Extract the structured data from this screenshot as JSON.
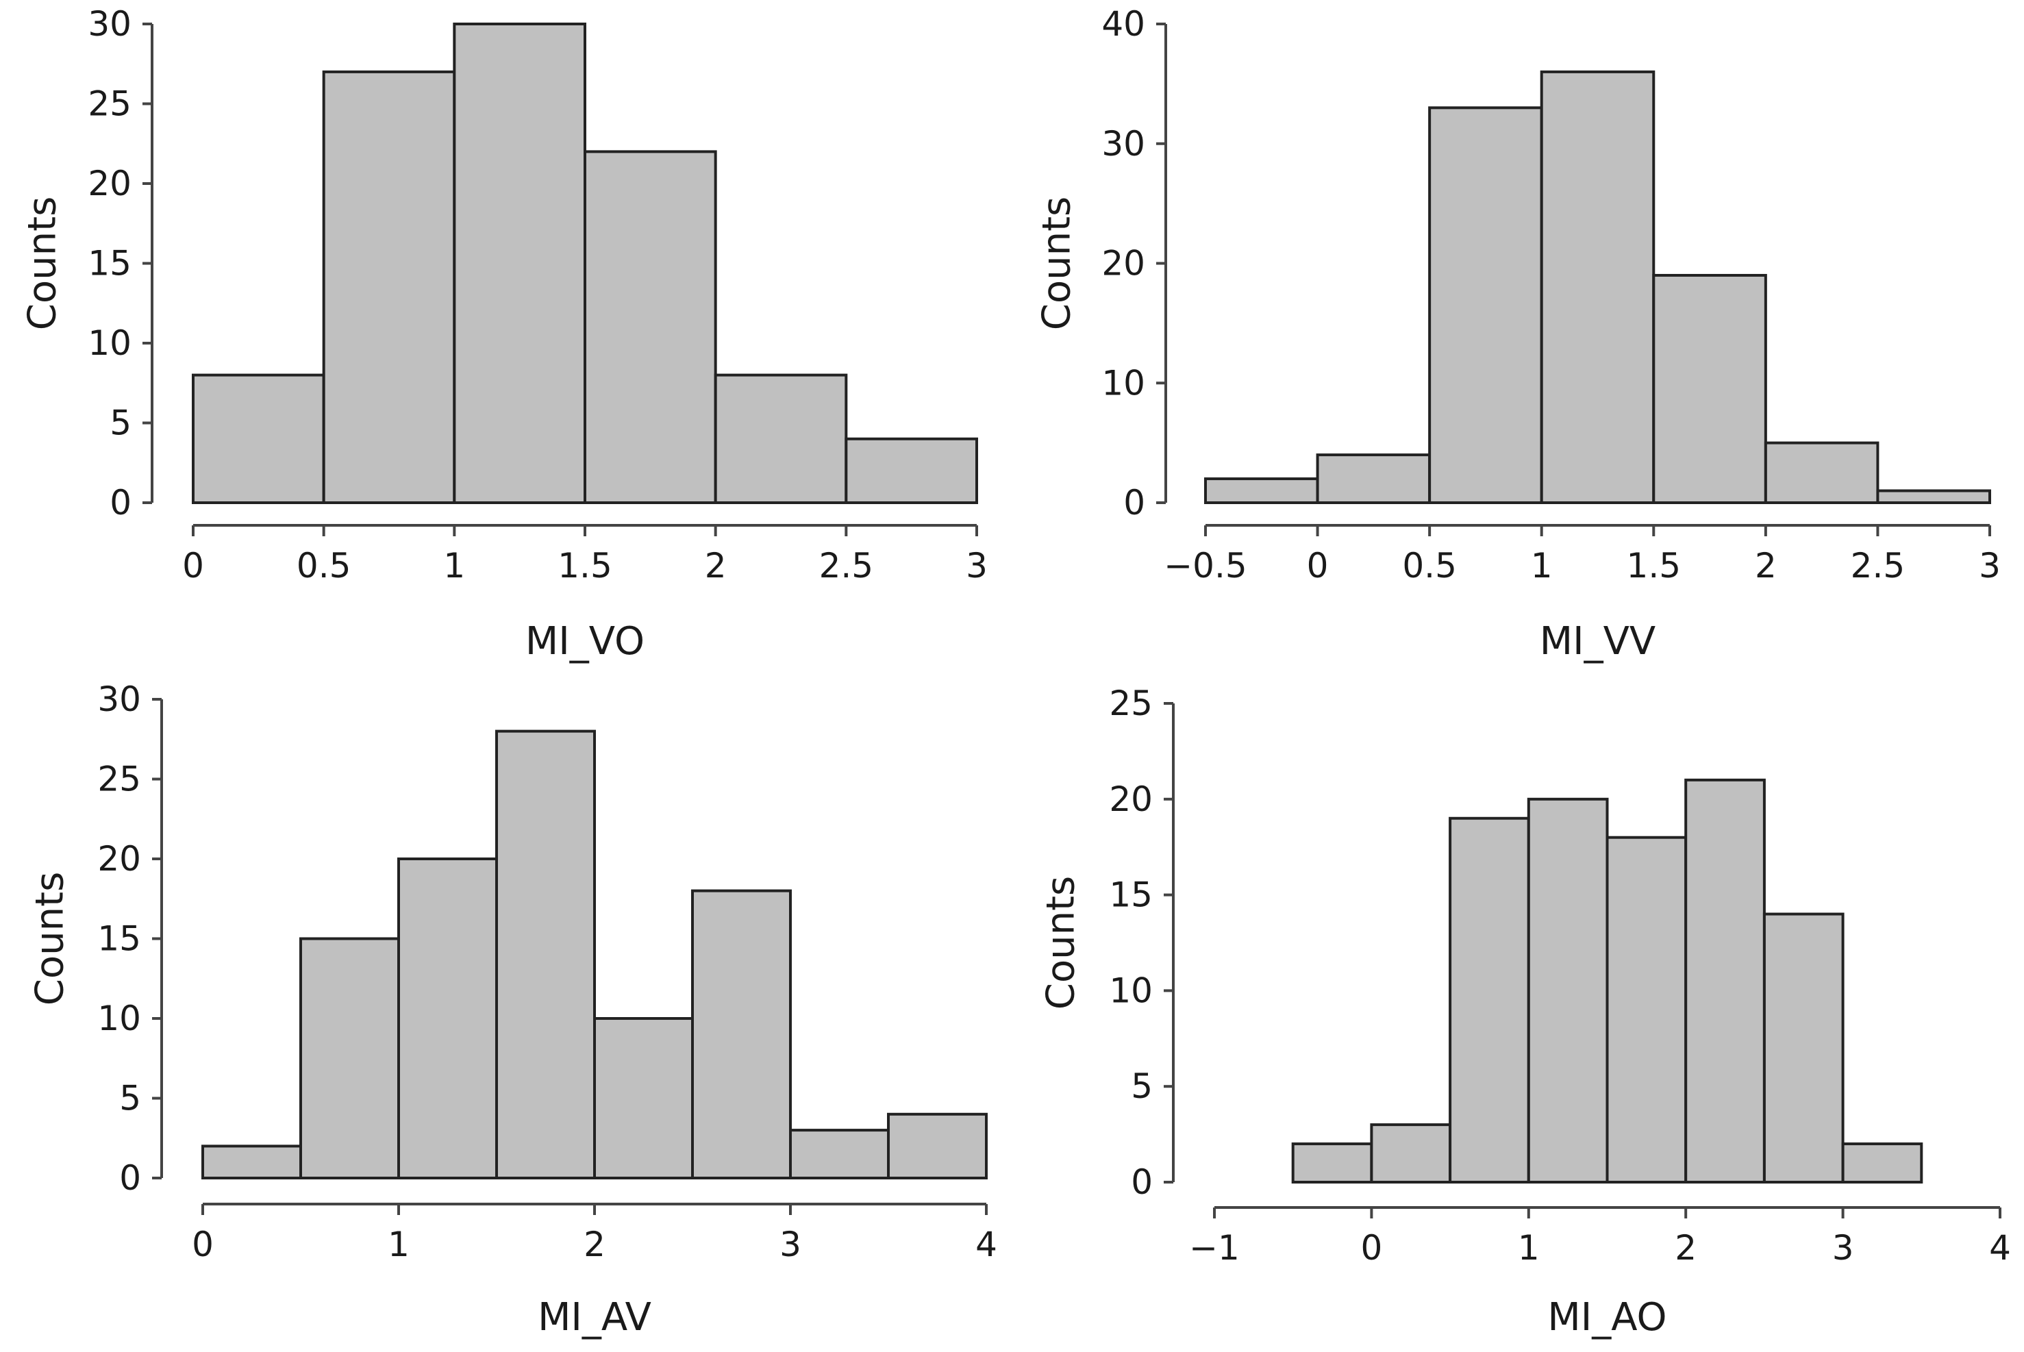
{
  "chart_data": [
    {
      "type": "bar",
      "histogram": true,
      "title": "",
      "xlabel": "MI_VO",
      "ylabel": "Counts",
      "bin_edges": [
        0,
        0.5,
        1,
        1.5,
        2,
        2.5,
        3
      ],
      "values": [
        8,
        27,
        30,
        22,
        8,
        4
      ],
      "xlim": [
        0,
        3
      ],
      "ylim": [
        0,
        30
      ],
      "x_ticks": [
        0,
        0.5,
        1,
        1.5,
        2,
        2.5,
        3
      ],
      "x_tick_labels": [
        "0",
        "0.5",
        "1",
        "1.5",
        "2",
        "2.5",
        "3"
      ],
      "y_ticks": [
        0,
        5,
        10,
        15,
        20,
        25,
        30
      ],
      "y_tick_labels": [
        "0",
        "5",
        "10",
        "15",
        "20",
        "25",
        "30"
      ],
      "grid": false
    },
    {
      "type": "bar",
      "histogram": true,
      "title": "",
      "xlabel": "MI_VV",
      "ylabel": "Counts",
      "bin_edges": [
        -0.5,
        0,
        0.5,
        1,
        1.5,
        2,
        2.5,
        3
      ],
      "values": [
        2,
        4,
        33,
        36,
        19,
        5,
        1
      ],
      "xlim": [
        -0.5,
        3
      ],
      "ylim": [
        0,
        40
      ],
      "x_ticks": [
        -0.5,
        0,
        0.5,
        1,
        1.5,
        2,
        2.5,
        3
      ],
      "x_tick_labels": [
        "−0.5",
        "0",
        "0.5",
        "1",
        "1.5",
        "2",
        "2.5",
        "3"
      ],
      "y_ticks": [
        0,
        10,
        20,
        30,
        40
      ],
      "y_tick_labels": [
        "0",
        "10",
        "20",
        "30",
        "40"
      ],
      "grid": false
    },
    {
      "type": "bar",
      "histogram": true,
      "title": "",
      "xlabel": "MI_AV",
      "ylabel": "Counts",
      "bin_edges": [
        0,
        0.5,
        1,
        1.5,
        2,
        2.5,
        3,
        3.5,
        4
      ],
      "values": [
        2,
        15,
        20,
        28,
        10,
        18,
        3,
        4
      ],
      "xlim": [
        0,
        4
      ],
      "ylim": [
        0,
        30
      ],
      "x_ticks": [
        0,
        1,
        2,
        3,
        4
      ],
      "x_tick_labels": [
        "0",
        "1",
        "2",
        "3",
        "4"
      ],
      "y_ticks": [
        0,
        5,
        10,
        15,
        20,
        25,
        30
      ],
      "y_tick_labels": [
        "0",
        "5",
        "10",
        "15",
        "20",
        "25",
        "30"
      ],
      "grid": false
    },
    {
      "type": "bar",
      "histogram": true,
      "title": "",
      "xlabel": "MI_AO",
      "ylabel": "Counts",
      "bin_edges": [
        -0.5,
        0,
        0.5,
        1,
        1.5,
        2,
        2.5,
        3,
        3.5
      ],
      "values": [
        2,
        3,
        19,
        20,
        18,
        21,
        14,
        2
      ],
      "xlim": [
        -1,
        4
      ],
      "ylim": [
        0,
        25
      ],
      "x_ticks": [
        -1,
        0,
        1,
        2,
        3,
        4
      ],
      "x_tick_labels": [
        "−1",
        "0",
        "1",
        "2",
        "3",
        "4"
      ],
      "y_ticks": [
        0,
        5,
        10,
        15,
        20,
        25
      ],
      "y_tick_labels": [
        "0",
        "5",
        "10",
        "15",
        "20",
        "25"
      ],
      "grid": false
    }
  ]
}
